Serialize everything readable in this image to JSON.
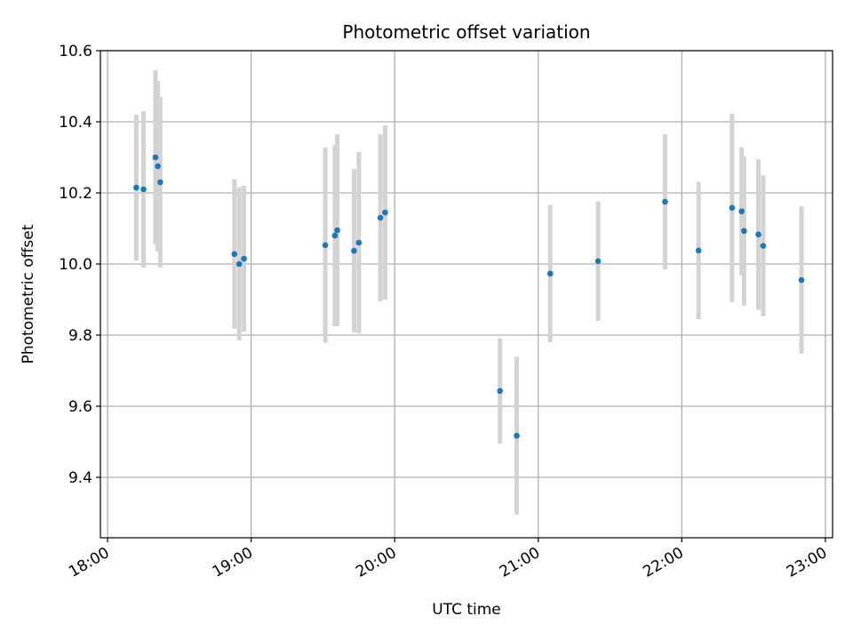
{
  "chart_data": {
    "type": "scatter",
    "title": "Photometric offset variation",
    "xlabel": "UTC time",
    "ylabel": "Photometric offset",
    "x_ticks": [
      "18:00",
      "19:00",
      "20:00",
      "21:00",
      "22:00",
      "23:00"
    ],
    "y_ticks": [
      "9.4",
      "9.6",
      "9.8",
      "10.0",
      "10.2",
      "10.4",
      "10.6"
    ],
    "xlim": [
      "17:57",
      "23:03"
    ],
    "ylim": [
      9.23,
      10.6
    ],
    "grid": true,
    "colors": {
      "points": "#1f77b4",
      "errorbars": "#d3d3d3",
      "grid": "#b0b0b0"
    },
    "points": [
      {
        "x": "18:12",
        "y": 10.215,
        "yerr": 0.205
      },
      {
        "x": "18:15",
        "y": 10.21,
        "yerr": 0.22
      },
      {
        "x": "18:20",
        "y": 10.3,
        "yerr": 0.245
      },
      {
        "x": "18:21",
        "y": 10.275,
        "yerr": 0.24
      },
      {
        "x": "18:22",
        "y": 10.23,
        "yerr": 0.24
      },
      {
        "x": "18:53",
        "y": 10.028,
        "yerr": 0.21
      },
      {
        "x": "18:55",
        "y": 10.0,
        "yerr": 0.215
      },
      {
        "x": "18:57",
        "y": 10.015,
        "yerr": 0.205
      },
      {
        "x": "19:31",
        "y": 10.053,
        "yerr": 0.275
      },
      {
        "x": "19:35",
        "y": 10.08,
        "yerr": 0.255
      },
      {
        "x": "19:36",
        "y": 10.095,
        "yerr": 0.27
      },
      {
        "x": "19:43",
        "y": 10.037,
        "yerr": 0.23
      },
      {
        "x": "19:45",
        "y": 10.06,
        "yerr": 0.255
      },
      {
        "x": "19:54",
        "y": 10.13,
        "yerr": 0.235
      },
      {
        "x": "19:56",
        "y": 10.145,
        "yerr": 0.245
      },
      {
        "x": "20:44",
        "y": 9.643,
        "yerr": 0.148
      },
      {
        "x": "20:51",
        "y": 9.517,
        "yerr": 0.222
      },
      {
        "x": "21:05",
        "y": 9.973,
        "yerr": 0.193
      },
      {
        "x": "21:25",
        "y": 10.008,
        "yerr": 0.168
      },
      {
        "x": "21:53",
        "y": 10.175,
        "yerr": 0.19
      },
      {
        "x": "22:07",
        "y": 10.038,
        "yerr": 0.193
      },
      {
        "x": "22:21",
        "y": 10.158,
        "yerr": 0.265
      },
      {
        "x": "22:25",
        "y": 10.148,
        "yerr": 0.18
      },
      {
        "x": "22:26",
        "y": 10.093,
        "yerr": 0.21
      },
      {
        "x": "22:32",
        "y": 10.083,
        "yerr": 0.212
      },
      {
        "x": "22:34",
        "y": 10.051,
        "yerr": 0.198
      },
      {
        "x": "22:50",
        "y": 9.955,
        "yerr": 0.207
      }
    ]
  }
}
